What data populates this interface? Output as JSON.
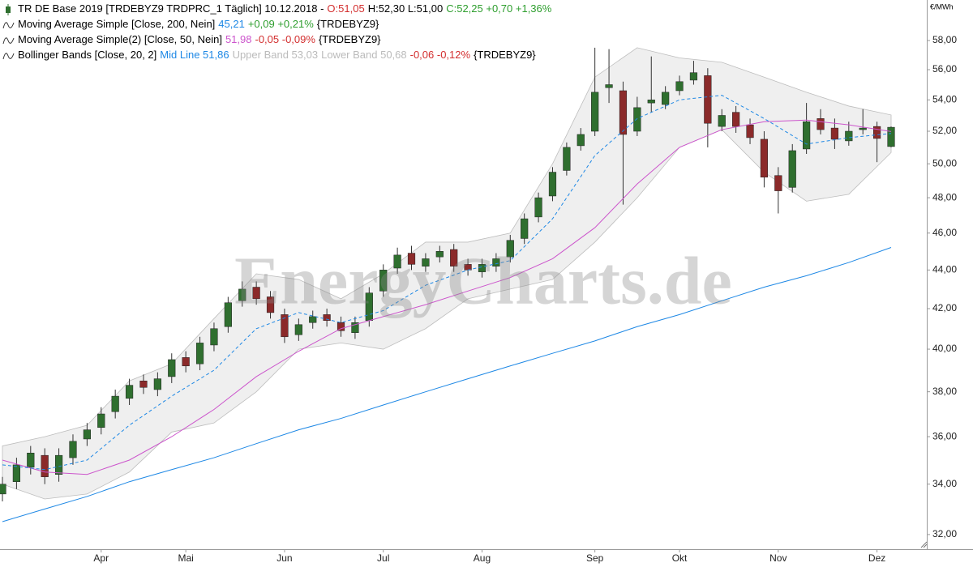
{
  "chart_data": {
    "type": "candlestick",
    "unit": "€/MWh",
    "watermark": "EnergyCharts.de",
    "log_scale": true,
    "grid": false,
    "ylim": [
      31.44,
      60.9
    ],
    "yticks": [
      {
        "value": 32,
        "label": "32,00"
      },
      {
        "value": 34,
        "label": "34,00"
      },
      {
        "value": 36,
        "label": "36,00"
      },
      {
        "value": 38,
        "label": "38,00"
      },
      {
        "value": 40,
        "label": "40,00"
      },
      {
        "value": 42,
        "label": "42,00"
      },
      {
        "value": 44,
        "label": "44,00"
      },
      {
        "value": 46,
        "label": "46,00"
      },
      {
        "value": 48,
        "label": "48,00"
      },
      {
        "value": 50,
        "label": "50,00"
      },
      {
        "value": 52,
        "label": "52,00"
      },
      {
        "value": 54,
        "label": "54,00"
      },
      {
        "value": 56,
        "label": "56,00"
      },
      {
        "value": 58,
        "label": "58,00"
      }
    ],
    "categories": [
      null,
      null,
      null,
      null,
      null,
      null,
      null,
      "Apr",
      null,
      null,
      null,
      null,
      null,
      "Mai",
      null,
      null,
      null,
      null,
      null,
      null,
      "Jun",
      null,
      null,
      null,
      null,
      null,
      null,
      "Jul",
      null,
      null,
      null,
      null,
      null,
      null,
      "Aug",
      null,
      null,
      null,
      null,
      null,
      null,
      null,
      "Sep",
      null,
      null,
      null,
      null,
      null,
      "Okt",
      null,
      null,
      null,
      null,
      null,
      null,
      "Nov",
      null,
      null,
      null,
      null,
      null,
      null,
      "Dez",
      null
    ],
    "legend": [
      [
        {
          "text": "TR DE Base 2019 [TRDEBYZ9 TRDPRC_1 Täglich] 10.12.2018 -",
          "color": "#000000"
        },
        {
          "text": "O:51,05",
          "color": "#d32f2f"
        },
        {
          "text": "H:52,30 L:51,00",
          "color": "#000000"
        },
        {
          "text": "C:52,25 +0,70 +1,36%",
          "color": "#2e9e2e"
        }
      ],
      [
        {
          "text": "Moving Average Simple [Close, 200, Nein]",
          "color": "#000000"
        },
        {
          "text": "45,21",
          "color": "#1e88e5"
        },
        {
          "text": "+0,09 +0,21%",
          "color": "#2e9e2e"
        },
        {
          "text": "{TRDEBYZ9}",
          "color": "#000000"
        }
      ],
      [
        {
          "text": "Moving Average Simple(2) [Close, 50, Nein]",
          "color": "#000000"
        },
        {
          "text": "51,98",
          "color": "#cc55cc"
        },
        {
          "text": "-0,05 -0,09%",
          "color": "#d32f2f"
        },
        {
          "text": "{TRDEBYZ9}",
          "color": "#000000"
        }
      ],
      [
        {
          "text": "Bollinger Bands [Close, 20, 2]",
          "color": "#000000"
        },
        {
          "text": "Mid Line 51,86",
          "color": "#1e88e5"
        },
        {
          "text": "Upper Band 53,03",
          "color": "#bbbbbb"
        },
        {
          "text": "Lower Band 50,68",
          "color": "#bbbbbb"
        },
        {
          "text": "-0,06 -0,12%",
          "color": "#d32f2f"
        },
        {
          "text": "{TRDEBYZ9}",
          "color": "#000000"
        }
      ]
    ],
    "candles": {
      "up_color": "#2f6f2f",
      "down_color": "#8b2a2a",
      "open": [
        33.6,
        34.1,
        34.7,
        35.2,
        34.4,
        35.1,
        35.9,
        36.4,
        37.1,
        37.7,
        38.5,
        38.1,
        38.7,
        39.6,
        39.3,
        40.2,
        41.1,
        42.4,
        43.1,
        42.6,
        41.7,
        40.7,
        41.3,
        41.7,
        41.3,
        40.8,
        41.4,
        42.9,
        44.1,
        44.9,
        44.2,
        44.7,
        45.1,
        44.3,
        43.9,
        44.2,
        44.7,
        45.7,
        46.9,
        48.1,
        49.6,
        51.1,
        52.0,
        54.8,
        54.6,
        52.0,
        53.8,
        53.7,
        54.6,
        55.3,
        55.6,
        52.3,
        53.2,
        52.4,
        51.5,
        49.3,
        48.6,
        50.9,
        52.8,
        52.2,
        51.4,
        52.1,
        52.3,
        51.05
      ],
      "high": [
        34.3,
        35.1,
        35.6,
        35.5,
        35.5,
        36.1,
        36.6,
        37.3,
        38.1,
        38.6,
        38.8,
        38.9,
        39.8,
        39.9,
        40.6,
        41.3,
        42.6,
        43.4,
        43.4,
        42.9,
        42.0,
        41.5,
        41.9,
        42.0,
        41.6,
        41.6,
        43.1,
        44.3,
        45.2,
        45.3,
        44.9,
        45.3,
        45.4,
        44.6,
        44.6,
        44.9,
        45.9,
        47.1,
        48.3,
        49.8,
        51.3,
        52.2,
        57.5,
        57.4,
        55.2,
        54.2,
        56.9,
        54.9,
        55.6,
        56.6,
        56.1,
        53.4,
        53.6,
        52.8,
        52.0,
        49.8,
        51.2,
        53.8,
        53.4,
        52.8,
        52.6,
        53.4,
        52.6,
        52.3
      ],
      "low": [
        33.3,
        33.8,
        34.4,
        34.0,
        34.1,
        34.8,
        35.6,
        36.1,
        36.8,
        37.4,
        37.9,
        37.8,
        38.4,
        38.9,
        39.0,
        39.9,
        40.8,
        42.1,
        42.2,
        41.5,
        40.3,
        40.4,
        41.0,
        41.1,
        40.6,
        40.5,
        41.1,
        42.6,
        43.8,
        44.0,
        43.9,
        44.4,
        43.9,
        43.7,
        43.6,
        43.9,
        44.4,
        45.4,
        46.6,
        47.8,
        49.3,
        50.8,
        51.7,
        53.8,
        47.6,
        51.7,
        53.2,
        53.4,
        54.3,
        55.0,
        51.0,
        52.0,
        51.9,
        51.2,
        48.6,
        47.1,
        48.3,
        50.6,
        51.8,
        50.9,
        51.1,
        51.8,
        50.1,
        51.0
      ],
      "close": [
        34.0,
        34.8,
        35.3,
        34.3,
        35.2,
        35.8,
        36.3,
        37.0,
        37.8,
        38.3,
        38.2,
        38.6,
        39.5,
        39.2,
        40.3,
        41.0,
        42.3,
        43.0,
        42.5,
        41.8,
        40.6,
        41.2,
        41.6,
        41.4,
        40.9,
        41.3,
        42.8,
        44.0,
        44.8,
        44.3,
        44.6,
        45.0,
        44.2,
        44.0,
        44.3,
        44.6,
        45.6,
        46.8,
        48.0,
        49.5,
        51.0,
        51.8,
        54.5,
        55.0,
        51.8,
        53.5,
        54.0,
        54.5,
        55.2,
        55.8,
        52.5,
        53.0,
        52.3,
        51.6,
        49.2,
        48.4,
        50.8,
        52.6,
        52.1,
        51.5,
        52.0,
        52.2,
        51.55,
        52.25
      ]
    },
    "band": {
      "fill": "#efefef",
      "stroke": "#bdbdbd",
      "x": [
        0,
        3,
        6,
        9,
        12,
        15,
        18,
        21,
        24,
        27,
        30,
        33,
        36,
        39,
        42,
        45,
        48,
        51,
        54,
        57,
        60,
        63
      ],
      "upper": [
        35.6,
        36.0,
        36.5,
        38.5,
        39.3,
        41.5,
        43.8,
        43.5,
        42.5,
        43.8,
        45.5,
        45.5,
        46.0,
        50.0,
        55.5,
        57.5,
        56.8,
        56.5,
        55.5,
        54.5,
        53.6,
        53.03
      ],
      "lower": [
        34.0,
        33.4,
        33.6,
        34.5,
        36.2,
        36.6,
        38.0,
        40.0,
        40.3,
        40.0,
        41.0,
        42.5,
        43.0,
        43.5,
        45.5,
        48.0,
        51.0,
        52.1,
        49.5,
        47.8,
        48.2,
        50.68
      ]
    },
    "series": [
      {
        "color": "#1e88e5",
        "dash": false,
        "x": [
          0,
          3,
          6,
          9,
          12,
          15,
          18,
          21,
          24,
          27,
          30,
          33,
          36,
          39,
          42,
          45,
          48,
          51,
          54,
          57,
          60,
          63
        ],
        "values": [
          32.5,
          33.0,
          33.5,
          34.1,
          34.6,
          35.1,
          35.7,
          36.3,
          36.8,
          37.4,
          38.0,
          38.6,
          39.2,
          39.8,
          40.4,
          41.1,
          41.7,
          42.4,
          43.1,
          43.7,
          44.4,
          45.21
        ]
      },
      {
        "color": "#cc55cc",
        "dash": false,
        "x": [
          0,
          3,
          6,
          9,
          12,
          15,
          18,
          21,
          24,
          27,
          30,
          33,
          36,
          39,
          42,
          45,
          48,
          51,
          54,
          57,
          60,
          63
        ],
        "values": [
          35.0,
          34.5,
          34.4,
          35.0,
          36.0,
          37.2,
          38.7,
          39.9,
          41.0,
          41.6,
          42.2,
          42.9,
          43.6,
          44.6,
          46.3,
          48.8,
          51.0,
          52.1,
          52.6,
          52.7,
          52.4,
          51.98
        ]
      },
      {
        "color": "#1e88e5",
        "dash": true,
        "x": [
          0,
          3,
          6,
          9,
          12,
          15,
          18,
          21,
          24,
          27,
          30,
          33,
          36,
          39,
          42,
          45,
          48,
          51,
          54,
          57,
          60,
          63
        ],
        "values": [
          34.8,
          34.6,
          35.0,
          36.5,
          37.8,
          39.0,
          41.0,
          41.8,
          41.3,
          41.9,
          43.2,
          44.0,
          44.5,
          46.8,
          50.5,
          52.8,
          54.0,
          54.3,
          52.8,
          51.2,
          51.6,
          51.86
        ]
      }
    ]
  }
}
